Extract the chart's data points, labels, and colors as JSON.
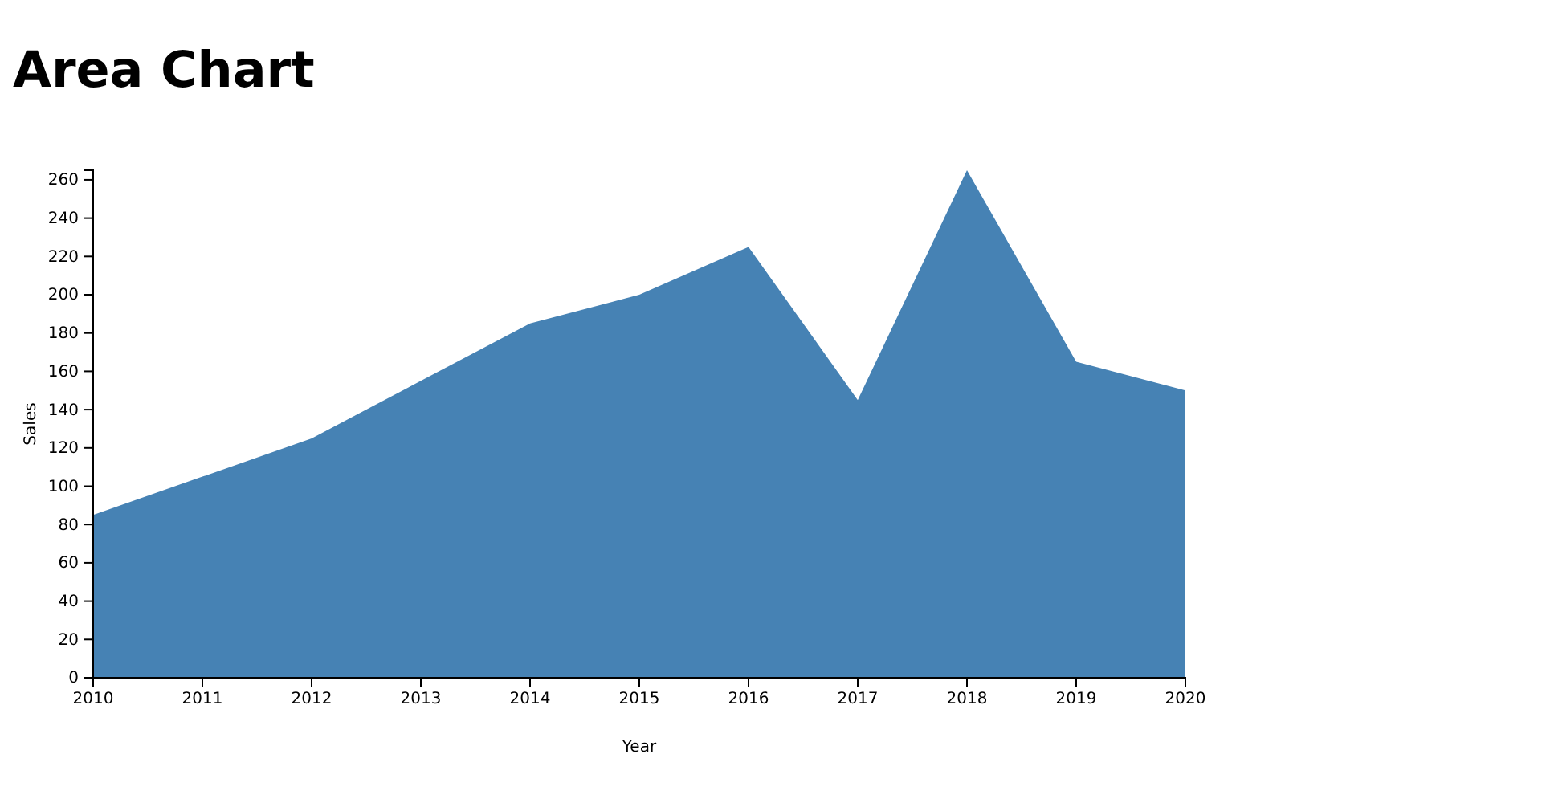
{
  "chart_data": {
    "type": "area",
    "title": "Area Chart",
    "xlabel": "Year",
    "ylabel": "Sales",
    "x": [
      2010,
      2011,
      2012,
      2013,
      2014,
      2015,
      2016,
      2017,
      2018,
      2019,
      2020
    ],
    "series": [
      {
        "color": "#4682b4",
        "values": [
          85,
          105,
          125,
          155,
          185,
          200,
          225,
          145,
          265,
          165,
          150
        ]
      }
    ],
    "xlim": [
      2010,
      2020
    ],
    "xticks": [
      2010,
      2011,
      2012,
      2013,
      2014,
      2015,
      2016,
      2017,
      2018,
      2019,
      2020
    ],
    "ylim": [
      0,
      265
    ],
    "yticks": [
      0,
      20,
      40,
      60,
      80,
      100,
      120,
      140,
      160,
      180,
      200,
      220,
      240,
      260
    ],
    "grid": false
  }
}
